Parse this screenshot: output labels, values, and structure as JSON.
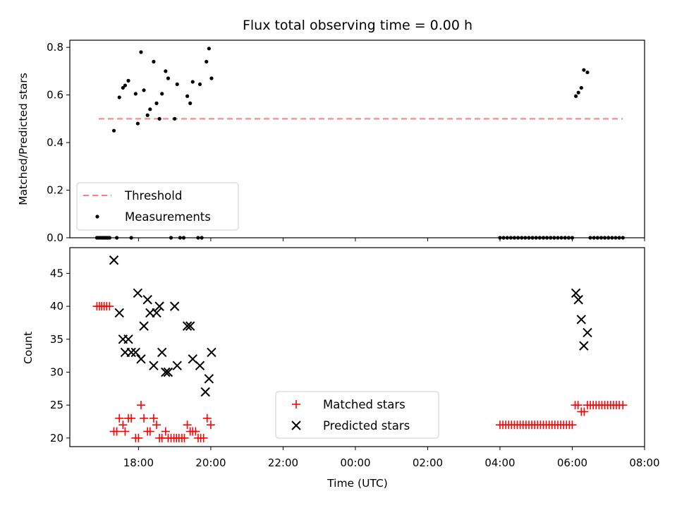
{
  "chart_data": [
    {
      "type": "scatter",
      "title": "Flux total observing time = 0.00 h",
      "xlabel": "",
      "ylabel": "Matched/Predicted stars",
      "xlim_hours": [
        16.1,
        32.0
      ],
      "ylim": [
        0.0,
        0.83
      ],
      "xticks": [
        {
          "h": 18,
          "label": "18:00"
        },
        {
          "h": 20,
          "label": "20:00"
        },
        {
          "h": 22,
          "label": "22:00"
        },
        {
          "h": 24,
          "label": "00:00"
        },
        {
          "h": 26,
          "label": "02:00"
        },
        {
          "h": 28,
          "label": "04:00"
        },
        {
          "h": 30,
          "label": "06:00"
        },
        {
          "h": 32,
          "label": "08:00"
        }
      ],
      "yticks": [
        {
          "v": 0.0,
          "label": "0.0"
        },
        {
          "v": 0.2,
          "label": "0.2"
        },
        {
          "v": 0.4,
          "label": "0.4"
        },
        {
          "v": 0.6,
          "label": "0.6"
        },
        {
          "v": 0.8,
          "label": "0.8"
        }
      ],
      "legend": {
        "position": "lower-left",
        "threshold_label": "Threshold",
        "measurements_label": "Measurements"
      },
      "threshold": {
        "name": "Threshold",
        "value": 0.5,
        "x_range": [
          16.9,
          31.4
        ],
        "color": "#ff7f7f",
        "style": "dashed"
      },
      "series": [
        {
          "name": "Measurements",
          "color": "#000000",
          "points": [
            [
              17.32,
              0.45
            ],
            [
              17.47,
              0.59
            ],
            [
              17.57,
              0.63
            ],
            [
              17.63,
              0.64
            ],
            [
              17.72,
              0.66
            ],
            [
              17.92,
              0.605
            ],
            [
              17.98,
              0.48
            ],
            [
              18.07,
              0.78
            ],
            [
              18.15,
              0.62
            ],
            [
              18.25,
              0.515
            ],
            [
              18.32,
              0.54
            ],
            [
              18.42,
              0.74
            ],
            [
              18.5,
              0.565
            ],
            [
              18.58,
              0.5
            ],
            [
              18.65,
              0.605
            ],
            [
              18.75,
              0.7
            ],
            [
              18.82,
              0.67
            ],
            [
              19.0,
              0.5
            ],
            [
              19.07,
              0.645
            ],
            [
              19.35,
              0.595
            ],
            [
              19.43,
              0.565
            ],
            [
              19.5,
              0.655
            ],
            [
              19.7,
              0.645
            ],
            [
              19.88,
              0.74
            ],
            [
              19.95,
              0.795
            ],
            [
              20.02,
              0.67
            ],
            [
              16.85,
              0.0
            ],
            [
              16.9,
              0.0
            ],
            [
              16.95,
              0.0
            ],
            [
              17.0,
              0.0
            ],
            [
              17.05,
              0.0
            ],
            [
              17.1,
              0.0
            ],
            [
              17.15,
              0.0
            ],
            [
              17.2,
              0.0
            ],
            [
              17.4,
              0.0
            ],
            [
              17.8,
              0.0
            ],
            [
              18.9,
              0.0
            ],
            [
              19.15,
              0.0
            ],
            [
              19.25,
              0.0
            ],
            [
              19.65,
              0.0
            ],
            [
              19.75,
              0.0
            ],
            [
              28.0,
              0.0
            ],
            [
              28.1,
              0.0
            ],
            [
              28.2,
              0.0
            ],
            [
              28.3,
              0.0
            ],
            [
              28.4,
              0.0
            ],
            [
              28.5,
              0.0
            ],
            [
              28.6,
              0.0
            ],
            [
              28.7,
              0.0
            ],
            [
              28.8,
              0.0
            ],
            [
              28.9,
              0.0
            ],
            [
              29.0,
              0.0
            ],
            [
              29.1,
              0.0
            ],
            [
              29.2,
              0.0
            ],
            [
              29.3,
              0.0
            ],
            [
              29.4,
              0.0
            ],
            [
              29.5,
              0.0
            ],
            [
              29.6,
              0.0
            ],
            [
              29.7,
              0.0
            ],
            [
              29.8,
              0.0
            ],
            [
              29.9,
              0.0
            ],
            [
              30.0,
              0.0
            ],
            [
              30.1,
              0.595
            ],
            [
              30.17,
              0.61
            ],
            [
              30.25,
              0.63
            ],
            [
              30.32,
              0.705
            ],
            [
              30.42,
              0.695
            ],
            [
              30.5,
              0.0
            ],
            [
              30.6,
              0.0
            ],
            [
              30.7,
              0.0
            ],
            [
              30.8,
              0.0
            ],
            [
              30.9,
              0.0
            ],
            [
              31.0,
              0.0
            ],
            [
              31.1,
              0.0
            ],
            [
              31.2,
              0.0
            ],
            [
              31.3,
              0.0
            ],
            [
              31.4,
              0.0
            ]
          ]
        }
      ]
    },
    {
      "type": "scatter",
      "title": "",
      "xlabel": "Time (UTC)",
      "ylabel": "Count",
      "xlim_hours": [
        16.1,
        32.0
      ],
      "ylim": [
        18.7,
        48.9
      ],
      "xticks": [
        {
          "h": 18,
          "label": "18:00"
        },
        {
          "h": 20,
          "label": "20:00"
        },
        {
          "h": 22,
          "label": "22:00"
        },
        {
          "h": 24,
          "label": "00:00"
        },
        {
          "h": 26,
          "label": "02:00"
        },
        {
          "h": 28,
          "label": "04:00"
        },
        {
          "h": 30,
          "label": "06:00"
        },
        {
          "h": 32,
          "label": "08:00"
        }
      ],
      "yticks": [
        {
          "v": 20,
          "label": "20"
        },
        {
          "v": 25,
          "label": "25"
        },
        {
          "v": 30,
          "label": "30"
        },
        {
          "v": 35,
          "label": "35"
        },
        {
          "v": 40,
          "label": "40"
        },
        {
          "v": 45,
          "label": "45"
        }
      ],
      "legend": {
        "position": "lower-center",
        "matched_label": "Matched stars",
        "predicted_label": "Predicted stars"
      },
      "series": [
        {
          "name": "Matched stars",
          "marker": "plus",
          "color": "#ff0000",
          "points": [
            [
              16.85,
              40
            ],
            [
              16.92,
              40
            ],
            [
              16.98,
              40
            ],
            [
              17.05,
              40
            ],
            [
              17.12,
              40
            ],
            [
              17.2,
              40
            ],
            [
              17.32,
              21
            ],
            [
              17.4,
              21
            ],
            [
              17.47,
              23
            ],
            [
              17.57,
              22
            ],
            [
              17.63,
              21
            ],
            [
              17.72,
              23
            ],
            [
              17.8,
              23
            ],
            [
              17.92,
              20
            ],
            [
              18.0,
              20
            ],
            [
              18.07,
              25
            ],
            [
              18.15,
              23
            ],
            [
              18.25,
              21
            ],
            [
              18.32,
              21
            ],
            [
              18.42,
              23
            ],
            [
              18.5,
              22
            ],
            [
              18.58,
              20
            ],
            [
              18.65,
              20
            ],
            [
              18.75,
              21
            ],
            [
              18.82,
              20
            ],
            [
              18.9,
              20
            ],
            [
              18.98,
              20
            ],
            [
              19.05,
              20
            ],
            [
              19.12,
              20
            ],
            [
              19.2,
              20
            ],
            [
              19.27,
              20
            ],
            [
              19.35,
              22
            ],
            [
              19.43,
              21
            ],
            [
              19.5,
              21
            ],
            [
              19.58,
              21
            ],
            [
              19.65,
              20
            ],
            [
              19.72,
              20
            ],
            [
              19.8,
              20
            ],
            [
              19.9,
              23
            ],
            [
              20.0,
              22
            ],
            [
              28.0,
              22
            ],
            [
              28.08,
              22
            ],
            [
              28.16,
              22
            ],
            [
              28.24,
              22
            ],
            [
              28.32,
              22
            ],
            [
              28.4,
              22
            ],
            [
              28.48,
              22
            ],
            [
              28.56,
              22
            ],
            [
              28.64,
              22
            ],
            [
              28.72,
              22
            ],
            [
              28.8,
              22
            ],
            [
              28.88,
              22
            ],
            [
              28.96,
              22
            ],
            [
              29.04,
              22
            ],
            [
              29.12,
              22
            ],
            [
              29.2,
              22
            ],
            [
              29.28,
              22
            ],
            [
              29.36,
              22
            ],
            [
              29.44,
              22
            ],
            [
              29.52,
              22
            ],
            [
              29.6,
              22
            ],
            [
              29.68,
              22
            ],
            [
              29.76,
              22
            ],
            [
              29.84,
              22
            ],
            [
              29.92,
              22
            ],
            [
              30.0,
              22
            ],
            [
              30.08,
              25
            ],
            [
              30.16,
              25
            ],
            [
              30.25,
              24
            ],
            [
              30.33,
              24
            ],
            [
              30.42,
              25
            ],
            [
              30.5,
              25
            ],
            [
              30.58,
              25
            ],
            [
              30.66,
              25
            ],
            [
              30.74,
              25
            ],
            [
              30.82,
              25
            ],
            [
              30.9,
              25
            ],
            [
              30.98,
              25
            ],
            [
              31.06,
              25
            ],
            [
              31.14,
              25
            ],
            [
              31.22,
              25
            ],
            [
              31.3,
              25
            ],
            [
              31.4,
              25
            ]
          ]
        },
        {
          "name": "Predicted stars",
          "marker": "x",
          "color": "#000000",
          "points": [
            [
              17.32,
              47
            ],
            [
              17.47,
              39
            ],
            [
              17.57,
              35
            ],
            [
              17.63,
              33
            ],
            [
              17.72,
              35
            ],
            [
              17.8,
              33
            ],
            [
              17.92,
              33
            ],
            [
              17.98,
              42
            ],
            [
              18.07,
              32
            ],
            [
              18.15,
              37
            ],
            [
              18.25,
              41
            ],
            [
              18.32,
              39
            ],
            [
              18.42,
              31
            ],
            [
              18.5,
              39
            ],
            [
              18.58,
              40
            ],
            [
              18.65,
              33
            ],
            [
              18.75,
              30
            ],
            [
              18.82,
              30
            ],
            [
              19.0,
              40
            ],
            [
              19.07,
              31
            ],
            [
              19.35,
              37
            ],
            [
              19.43,
              37
            ],
            [
              19.5,
              32
            ],
            [
              19.7,
              31
            ],
            [
              19.85,
              27
            ],
            [
              19.95,
              29
            ],
            [
              20.02,
              33
            ],
            [
              30.1,
              42
            ],
            [
              30.17,
              41
            ],
            [
              30.25,
              38
            ],
            [
              30.32,
              34
            ],
            [
              30.42,
              36
            ]
          ]
        }
      ]
    }
  ]
}
